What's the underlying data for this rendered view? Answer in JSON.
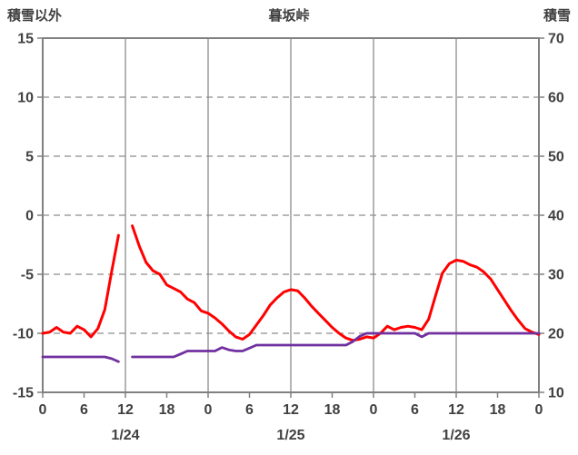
{
  "chart_data": {
    "type": "line",
    "title": "暮坂峠",
    "left_axis": {
      "label": "積雪以外",
      "min": -15,
      "max": 15,
      "ticks": [
        15,
        10,
        5,
        0,
        -5,
        -10,
        -15
      ]
    },
    "right_axis": {
      "label": "積雪",
      "min": 10,
      "max": 70,
      "ticks": [
        70,
        60,
        50,
        40,
        30,
        20,
        10
      ]
    },
    "x_axis": {
      "start_hour": 0,
      "end_hour": 72,
      "tick_interval_hours": 6,
      "tick_labels": [
        "0",
        "6",
        "12",
        "18",
        "0",
        "6",
        "12",
        "18",
        "0",
        "6",
        "12",
        "18",
        "0"
      ],
      "date_labels": [
        {
          "label": "1/24",
          "hour": 12
        },
        {
          "label": "1/25",
          "hour": 36
        },
        {
          "label": "1/26",
          "hour": 60
        }
      ]
    },
    "grid": {
      "horizontal_style": "dashed",
      "vertical_every_hours": 12
    },
    "colors": {
      "red_series": "#ff0000",
      "purple_series": "#7030a0",
      "grid": "#8c8c8c",
      "border": "#808080",
      "text": "#404040"
    },
    "series": [
      {
        "name": "red-line-left-axis",
        "axis": "left",
        "color_key": "red_series",
        "stroke_width": 3,
        "x_step_hours": 1,
        "values": [
          -10.0,
          -9.9,
          -9.5,
          -9.9,
          -10.0,
          -9.4,
          -9.7,
          -10.3,
          -9.6,
          -8.0,
          -4.8,
          -1.7,
          null,
          -0.9,
          -2.6,
          -4.0,
          -4.7,
          -5.0,
          -5.9,
          -6.2,
          -6.5,
          -7.1,
          -7.4,
          -8.1,
          -8.3,
          -8.7,
          -9.2,
          -9.8,
          -10.3,
          -10.5,
          -10.1,
          -9.3,
          -8.5,
          -7.6,
          -7.0,
          -6.5,
          -6.3,
          -6.4,
          -7.0,
          -7.7,
          -8.3,
          -8.9,
          -9.5,
          -10.0,
          -10.4,
          -10.6,
          -10.5,
          -10.3,
          -10.4,
          -10.0,
          -9.4,
          -9.7,
          -9.5,
          -9.4,
          -9.5,
          -9.7,
          -8.8,
          -6.8,
          -4.9,
          -4.1,
          -3.8,
          -3.9,
          -4.2,
          -4.4,
          -4.8,
          -5.4,
          -6.3,
          -7.2,
          -8.1,
          -8.9,
          -9.6,
          -9.9,
          -10.1
        ]
      },
      {
        "name": "purple-line-right-axis",
        "axis": "right",
        "color_key": "purple_series",
        "stroke_width": 2.8,
        "x_step_hours": 1,
        "values": [
          16,
          16,
          16,
          16,
          16,
          16,
          16,
          16,
          16,
          16,
          15.7,
          15.2,
          null,
          16,
          16,
          16,
          16,
          16,
          16,
          16,
          16.5,
          17,
          17,
          17,
          17,
          17,
          17.6,
          17.2,
          17,
          17,
          17.5,
          18,
          18,
          18,
          18,
          18,
          18,
          18,
          18,
          18,
          18,
          18,
          18,
          18,
          18,
          18.6,
          19.5,
          20,
          20,
          20,
          20,
          20,
          20,
          20,
          20,
          19.4,
          20,
          20,
          20,
          20,
          20,
          20,
          20,
          20,
          20,
          20,
          20,
          20,
          20,
          20,
          20,
          20,
          20
        ]
      }
    ]
  }
}
